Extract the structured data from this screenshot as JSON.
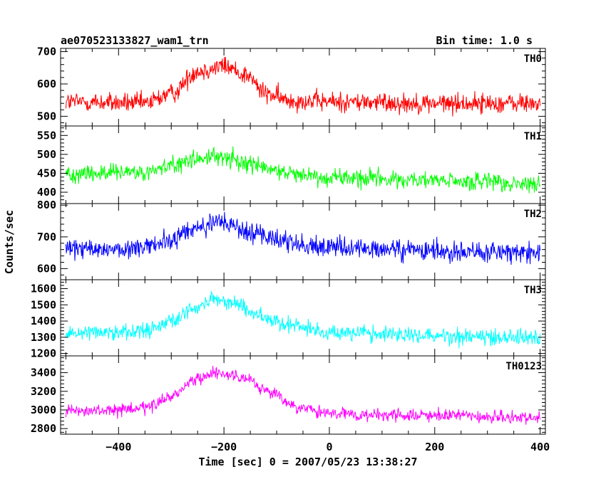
{
  "chart_data": {
    "type": "line",
    "title": "ae070523133827_wam1_trn",
    "subtitle": "Bin time: 1.0 s",
    "xlabel": "Time [sec] 0 = 2007/05/23 13:38:27",
    "ylabel": "Counts/sec",
    "xlim": [
      -510,
      410
    ],
    "x_ticks": [
      -400,
      -200,
      0,
      200,
      400
    ],
    "x_tick_labels": [
      "−400",
      "−200",
      "0",
      "200",
      "400"
    ],
    "x_range": [
      -500,
      400
    ],
    "bin_time": 1.0,
    "grid": false,
    "legend": "none",
    "panels": [
      {
        "label": "TH0",
        "color": "#ff0000",
        "ylim": [
          470,
          710
        ],
        "y_ticks": [
          500,
          600,
          700
        ],
        "envelope": [
          [
            -500,
            545
          ],
          [
            -350,
            540
          ],
          [
            -300,
            570
          ],
          [
            -250,
            640
          ],
          [
            -200,
            655
          ],
          [
            -160,
            630
          ],
          [
            -120,
            570
          ],
          [
            -80,
            550
          ],
          [
            0,
            545
          ],
          [
            200,
            540
          ],
          [
            400,
            540
          ]
        ],
        "noise": 28
      },
      {
        "label": "TH1",
        "color": "#00ff00",
        "ylim": [
          370,
          575
        ],
        "y_ticks": [
          400,
          450,
          500,
          550
        ],
        "envelope": [
          [
            -500,
            450
          ],
          [
            -350,
            450
          ],
          [
            -300,
            470
          ],
          [
            -250,
            490
          ],
          [
            -200,
            492
          ],
          [
            -150,
            475
          ],
          [
            -100,
            455
          ],
          [
            0,
            440
          ],
          [
            200,
            430
          ],
          [
            400,
            420
          ]
        ],
        "noise": 22
      },
      {
        "label": "TH2",
        "color": "#0000ff",
        "ylim": [
          565,
          805
        ],
        "y_ticks": [
          600,
          700,
          800
        ],
        "envelope": [
          [
            -500,
            660
          ],
          [
            -350,
            665
          ],
          [
            -300,
            690
          ],
          [
            -250,
            730
          ],
          [
            -200,
            745
          ],
          [
            -150,
            715
          ],
          [
            -100,
            690
          ],
          [
            0,
            665
          ],
          [
            200,
            655
          ],
          [
            400,
            650
          ]
        ],
        "noise": 30
      },
      {
        "label": "TH3",
        "color": "#00ffff",
        "ylim": [
          1185,
          1655
        ],
        "y_ticks": [
          1200,
          1300,
          1400,
          1500,
          1600
        ],
        "envelope": [
          [
            -500,
            1330
          ],
          [
            -350,
            1340
          ],
          [
            -300,
            1400
          ],
          [
            -250,
            1490
          ],
          [
            -220,
            1530
          ],
          [
            -180,
            1510
          ],
          [
            -130,
            1430
          ],
          [
            -80,
            1380
          ],
          [
            0,
            1330
          ],
          [
            200,
            1310
          ],
          [
            400,
            1300
          ]
        ],
        "noise": 45
      },
      {
        "label": "TH0123",
        "color": "#ff00ff",
        "ylim": [
          2740,
          3580
        ],
        "y_ticks": [
          2800,
          3000,
          3200,
          3400
        ],
        "envelope": [
          [
            -500,
            2980
          ],
          [
            -350,
            3010
          ],
          [
            -300,
            3150
          ],
          [
            -250,
            3330
          ],
          [
            -210,
            3400
          ],
          [
            -160,
            3340
          ],
          [
            -110,
            3180
          ],
          [
            -60,
            3020
          ],
          [
            0,
            2960
          ],
          [
            100,
            2940
          ],
          [
            200,
            2940
          ],
          [
            400,
            2910
          ]
        ],
        "noise": 60
      }
    ]
  }
}
